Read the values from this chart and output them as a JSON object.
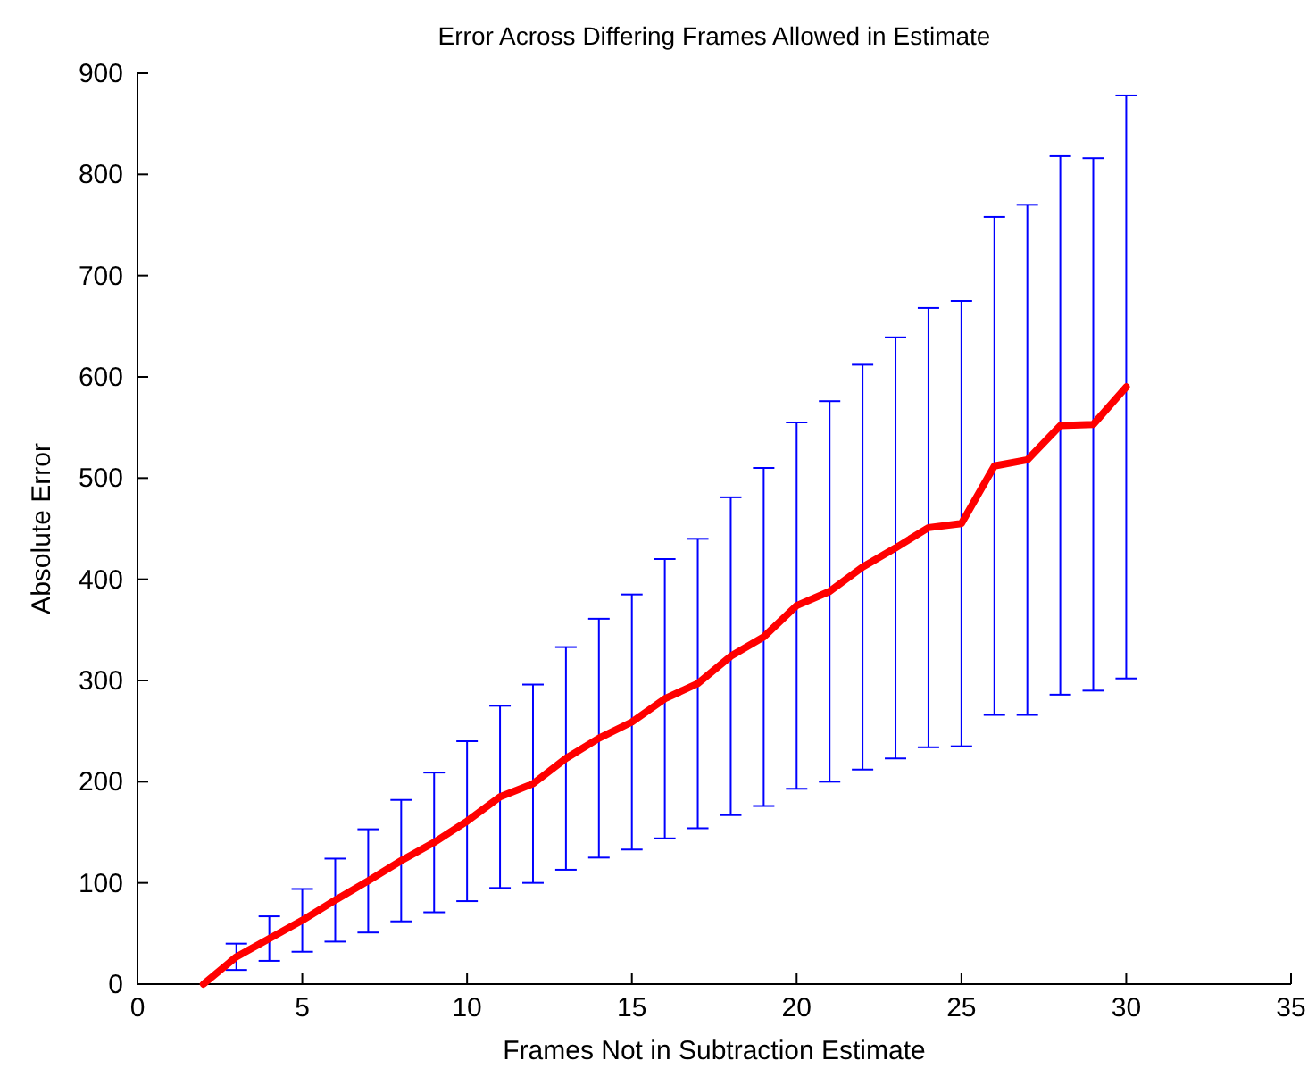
{
  "chart_data": {
    "type": "line",
    "title": "Error Across Differing Frames Allowed in Estimate",
    "xlabel": "Frames Not in Subtraction Estimate",
    "ylabel": "Absolute Error",
    "x": [
      2,
      3,
      4,
      5,
      6,
      7,
      8,
      9,
      10,
      11,
      12,
      13,
      14,
      15,
      16,
      17,
      18,
      19,
      20,
      21,
      22,
      23,
      24,
      25,
      26,
      27,
      28,
      29,
      30
    ],
    "series": [
      {
        "color": "#ff0000",
        "values": [
          0,
          27,
          45,
          63,
          83,
          102,
          122,
          140,
          161,
          185,
          198,
          223,
          243,
          259,
          282,
          297,
          324,
          343,
          374,
          388,
          412,
          431,
          451,
          455,
          512,
          518,
          552,
          553,
          590
        ],
        "errors": [
          null,
          13,
          22,
          31,
          41,
          51,
          60,
          69,
          79,
          90,
          98,
          110,
          118,
          126,
          138,
          143,
          157,
          167,
          181,
          188,
          200,
          208,
          217,
          220,
          246,
          252,
          266,
          263,
          288
        ]
      }
    ],
    "xlim": [
      0,
      35
    ],
    "xticks": [
      0,
      5,
      10,
      15,
      20,
      25,
      30,
      35
    ],
    "ylim": [
      0,
      900
    ],
    "yticks": [
      0,
      100,
      200,
      300,
      400,
      500,
      600,
      700,
      800,
      900
    ],
    "grid": false,
    "marker": "none",
    "line_style": "solid"
  }
}
